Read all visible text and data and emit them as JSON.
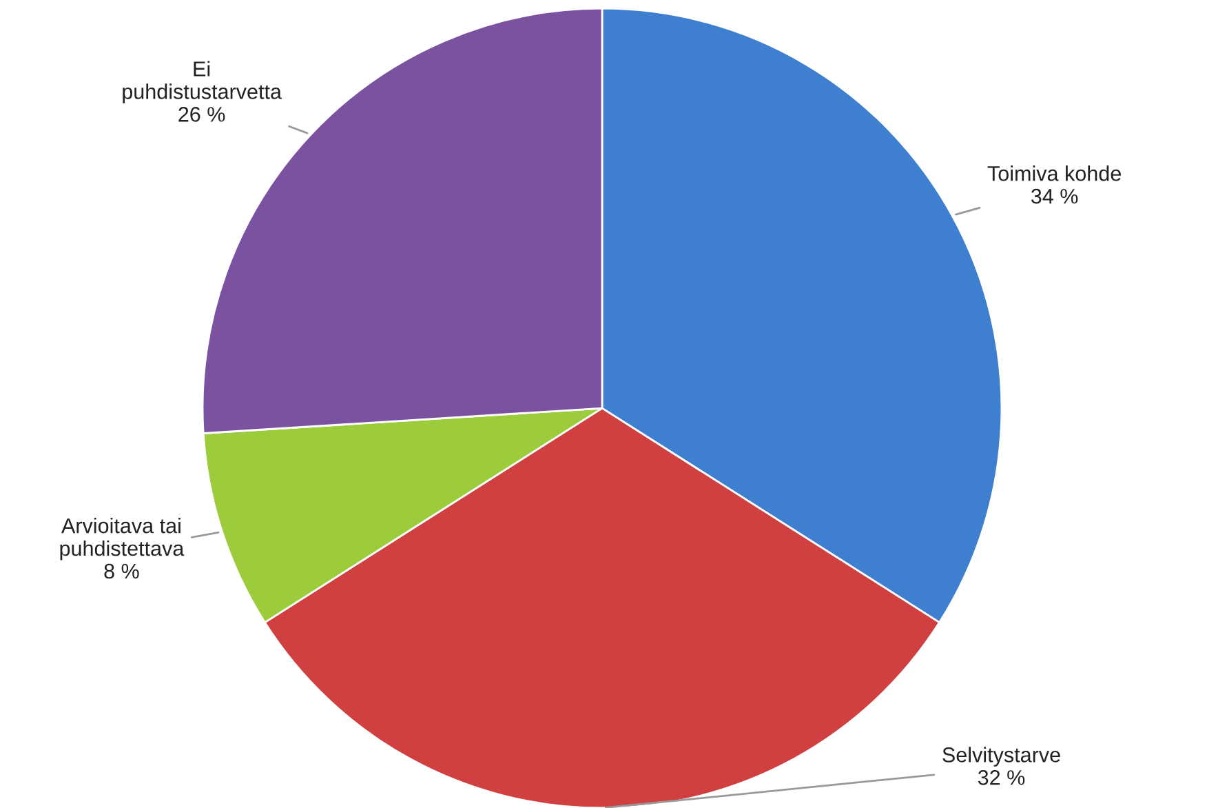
{
  "chart_data": {
    "type": "pie",
    "categories": [
      "Toimiva kohde",
      "Selvitystarve",
      "Arvioitava tai\npuhdistettava",
      "Ei\npuhdistustarvetta"
    ],
    "values": [
      34,
      32,
      8,
      26
    ],
    "value_labels": [
      "34 %",
      "32 %",
      "8 %",
      "26 %"
    ],
    "colors": [
      "#3f7fd0",
      "#d04040",
      "#9ccc3c",
      "#7a52a0"
    ],
    "legend": false
  }
}
